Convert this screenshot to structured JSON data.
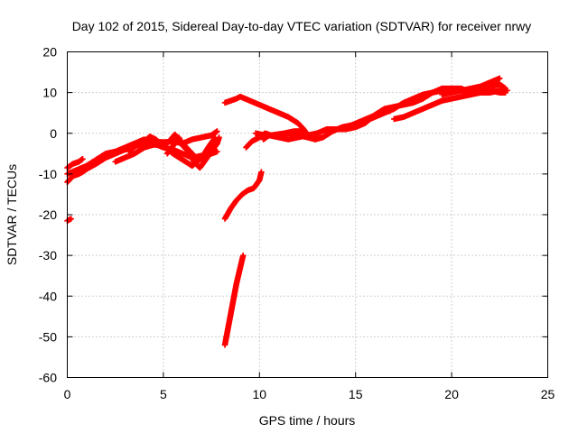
{
  "chart_data": {
    "type": "scatter",
    "title": "Day 102 of 2015, Sidereal Day-to-day VTEC variation (SDTVAR) for receiver nrwy",
    "xlabel": "GPS time / hours",
    "ylabel": "SDTVAR / TECUs",
    "xlim": [
      0,
      25
    ],
    "ylim": [
      -60,
      20
    ],
    "xticks": [
      "0",
      "5",
      "10",
      "15",
      "20",
      "25"
    ],
    "yticks": [
      "20",
      "10",
      "0",
      "-10",
      "-20",
      "-30",
      "-40",
      "-50",
      "-60"
    ],
    "grid": true,
    "marker_color": "#ff0000",
    "series": [
      {
        "segments": [
          [
            [
              0.0,
              -21.5
            ],
            [
              0.2,
              -21.0
            ]
          ],
          [
            [
              0.0,
              -8.5
            ],
            [
              0.3,
              -7.5
            ],
            [
              0.6,
              -7.0
            ],
            [
              0.8,
              -6.3
            ]
          ],
          [
            [
              0.0,
              -12.0
            ],
            [
              0.3,
              -10.5
            ],
            [
              0.6,
              -10.0
            ],
            [
              0.8,
              -9.5
            ],
            [
              1.0,
              -8.8
            ],
            [
              1.5,
              -7.5
            ],
            [
              2.0,
              -6.0
            ],
            [
              2.5,
              -5.0
            ],
            [
              3.0,
              -4.0
            ],
            [
              3.5,
              -3.2
            ],
            [
              4.0,
              -2.5
            ],
            [
              4.5,
              -2.0
            ],
            [
              5.0,
              -2.2
            ],
            [
              5.5,
              -2.0
            ],
            [
              6.0,
              -2.5
            ],
            [
              6.5,
              -1.5
            ],
            [
              7.0,
              -1.0
            ],
            [
              7.5,
              -0.5
            ],
            [
              7.8,
              0.5
            ]
          ],
          [
            [
              0.0,
              -10.0
            ],
            [
              0.5,
              -9.0
            ],
            [
              1.0,
              -8.0
            ],
            [
              1.5,
              -6.5
            ],
            [
              2.0,
              -5.0
            ],
            [
              2.5,
              -4.5
            ],
            [
              3.0,
              -3.5
            ],
            [
              3.5,
              -2.5
            ],
            [
              4.0,
              -1.5
            ],
            [
              4.5,
              -2.5
            ],
            [
              5.0,
              -3.5
            ],
            [
              5.5,
              -4.0
            ],
            [
              6.0,
              -5.0
            ],
            [
              6.5,
              -6.0
            ],
            [
              7.0,
              -5.5
            ],
            [
              7.5,
              -5.0
            ],
            [
              7.8,
              -4.5
            ]
          ],
          [
            [
              2.5,
              -7.0
            ],
            [
              3.0,
              -6.0
            ],
            [
              3.5,
              -5.0
            ],
            [
              4.0,
              -3.5
            ],
            [
              4.5,
              -2.8
            ],
            [
              5.0,
              -3.0
            ],
            [
              5.5,
              -5.0
            ],
            [
              6.0,
              -6.5
            ],
            [
              6.5,
              -8.0
            ],
            [
              7.0,
              -6.0
            ],
            [
              7.5,
              -4.0
            ],
            [
              7.8,
              -2.5
            ]
          ],
          [
            [
              3.2,
              -4.5
            ],
            [
              3.6,
              -3.0
            ],
            [
              4.0,
              -2.0
            ],
            [
              4.3,
              -0.8
            ],
            [
              4.6,
              -1.5
            ],
            [
              5.0,
              -3.2
            ],
            [
              5.3,
              -2.0
            ],
            [
              5.6,
              -0.3
            ],
            [
              6.0,
              -2.5
            ],
            [
              6.4,
              -4.5
            ],
            [
              6.8,
              -6.5
            ],
            [
              7.1,
              -5.2
            ],
            [
              7.4,
              -3.0
            ],
            [
              7.7,
              -1.0
            ]
          ],
          [
            [
              5.2,
              -5.0
            ],
            [
              5.6,
              -2.5
            ],
            [
              5.8,
              -1.0
            ],
            [
              6.0,
              -3.0
            ],
            [
              6.3,
              -4.5
            ],
            [
              6.6,
              -7.0
            ],
            [
              6.9,
              -8.5
            ],
            [
              7.2,
              -6.5
            ],
            [
              7.5,
              -4.5
            ],
            [
              7.8,
              -2.5
            ],
            [
              7.9,
              -1.0
            ]
          ],
          [
            [
              8.2,
              7.5
            ],
            [
              8.5,
              8.0
            ],
            [
              8.8,
              8.5
            ],
            [
              9.0,
              9.0
            ],
            [
              9.5,
              8.0
            ],
            [
              10.0,
              7.0
            ],
            [
              10.5,
              6.0
            ],
            [
              11.0,
              5.0
            ],
            [
              11.5,
              4.0
            ],
            [
              12.0,
              2.5
            ],
            [
              12.3,
              1.0
            ],
            [
              12.6,
              -1.0
            ],
            [
              12.9,
              -1.5
            ]
          ],
          [
            [
              8.2,
              -21.0
            ],
            [
              8.5,
              -18.5
            ],
            [
              8.8,
              -16.5
            ],
            [
              9.1,
              -15.0
            ],
            [
              9.4,
              -14.0
            ],
            [
              9.7,
              -13.5
            ],
            [
              10.0,
              -11.5
            ],
            [
              10.1,
              -9.5
            ]
          ],
          [
            [
              8.2,
              -52.0
            ],
            [
              8.4,
              -47.0
            ],
            [
              8.6,
              -42.0
            ],
            [
              8.8,
              -37.0
            ],
            [
              9.0,
              -33.0
            ],
            [
              9.15,
              -30.0
            ]
          ],
          [
            [
              9.3,
              -3.5
            ],
            [
              9.6,
              -2.0
            ],
            [
              10.0,
              -1.0
            ],
            [
              10.3,
              0.0
            ],
            [
              10.6,
              -0.5
            ],
            [
              11.0,
              -0.2
            ],
            [
              11.5,
              0.0
            ],
            [
              12.0,
              -0.5
            ],
            [
              12.5,
              -1.0
            ],
            [
              12.9,
              -1.5
            ],
            [
              13.3,
              -1.0
            ],
            [
              13.8,
              0.5
            ],
            [
              14.3,
              1.5
            ],
            [
              14.8,
              2.0
            ],
            [
              15.3,
              3.0
            ],
            [
              15.8,
              4.0
            ],
            [
              16.3,
              5.0
            ],
            [
              16.8,
              5.5
            ]
          ],
          [
            [
              9.8,
              0.0
            ],
            [
              10.3,
              -0.5
            ],
            [
              10.8,
              -0.5
            ],
            [
              11.3,
              0.0
            ],
            [
              11.8,
              0.5
            ],
            [
              12.2,
              0.5
            ],
            [
              12.7,
              -1.0
            ]
          ],
          [
            [
              10.2,
              -1.5
            ],
            [
              10.5,
              -0.5
            ],
            [
              11.0,
              -1.0
            ],
            [
              11.5,
              -1.5
            ],
            [
              12.0,
              -1.0
            ],
            [
              12.5,
              -0.5
            ],
            [
              13.0,
              0.0
            ],
            [
              13.5,
              1.0
            ],
            [
              14.0,
              1.0
            ],
            [
              14.5,
              1.0
            ],
            [
              15.0,
              1.5
            ],
            [
              15.5,
              2.5
            ],
            [
              16.0,
              4.5
            ],
            [
              16.5,
              6.0
            ],
            [
              17.0,
              6.5
            ],
            [
              17.5,
              7.0
            ],
            [
              18.0,
              7.5
            ],
            [
              18.5,
              8.5
            ],
            [
              19.0,
              10.0
            ],
            [
              19.5,
              11.0
            ],
            [
              20.0,
              11.0
            ],
            [
              20.5,
              11.0
            ],
            [
              21.0,
              10.0
            ],
            [
              21.5,
              10.0
            ],
            [
              22.0,
              10.5
            ],
            [
              22.5,
              10.0
            ],
            [
              22.8,
              10.0
            ]
          ],
          [
            [
              15.5,
              3.0
            ],
            [
              16.0,
              4.0
            ],
            [
              16.5,
              5.0
            ],
            [
              17.0,
              6.0
            ],
            [
              17.5,
              7.5
            ],
            [
              18.0,
              8.5
            ],
            [
              18.5,
              9.5
            ],
            [
              19.0,
              10.0
            ],
            [
              19.5,
              10.5
            ],
            [
              20.0,
              10.5
            ],
            [
              20.5,
              10.5
            ],
            [
              21.0,
              11.0
            ],
            [
              21.5,
              11.5
            ],
            [
              22.0,
              12.5
            ],
            [
              22.5,
              13.5
            ]
          ],
          [
            [
              17.0,
              3.5
            ],
            [
              17.5,
              4.0
            ],
            [
              18.0,
              5.0
            ],
            [
              18.5,
              6.0
            ],
            [
              19.0,
              7.0
            ],
            [
              19.5,
              8.0
            ],
            [
              20.0,
              8.5
            ],
            [
              20.5,
              9.0
            ],
            [
              21.0,
              9.5
            ],
            [
              21.5,
              10.0
            ],
            [
              22.0,
              10.0
            ],
            [
              22.5,
              10.5
            ],
            [
              22.9,
              10.5
            ]
          ],
          [
            [
              19.5,
              9.5
            ],
            [
              20.0,
              10.0
            ],
            [
              20.5,
              10.5
            ],
            [
              21.0,
              10.5
            ],
            [
              21.5,
              11.0
            ],
            [
              22.0,
              11.5
            ],
            [
              22.5,
              12.0
            ],
            [
              22.8,
              11.0
            ]
          ]
        ]
      }
    ]
  }
}
